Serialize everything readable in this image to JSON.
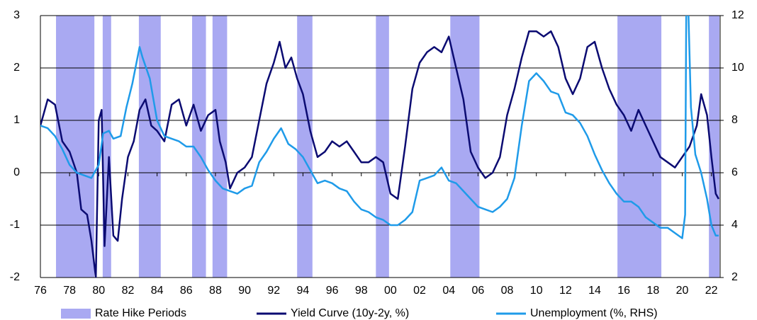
{
  "chart_data": {
    "type": "line",
    "xlim": [
      1976,
      2022.6
    ],
    "xticks": [
      {
        "value": 1976,
        "label": "76"
      },
      {
        "value": 1978,
        "label": "78"
      },
      {
        "value": 1980,
        "label": "80"
      },
      {
        "value": 1982,
        "label": "82"
      },
      {
        "value": 1984,
        "label": "84"
      },
      {
        "value": 1986,
        "label": "86"
      },
      {
        "value": 1988,
        "label": "88"
      },
      {
        "value": 1990,
        "label": "90"
      },
      {
        "value": 1992,
        "label": "92"
      },
      {
        "value": 1994,
        "label": "94"
      },
      {
        "value": 1996,
        "label": "96"
      },
      {
        "value": 1998,
        "label": "98"
      },
      {
        "value": 2000,
        "label": "00"
      },
      {
        "value": 2002,
        "label": "02"
      },
      {
        "value": 2004,
        "label": "04"
      },
      {
        "value": 2006,
        "label": "06"
      },
      {
        "value": 2008,
        "label": "08"
      },
      {
        "value": 2010,
        "label": "10"
      },
      {
        "value": 2012,
        "label": "12"
      },
      {
        "value": 2014,
        "label": "14"
      },
      {
        "value": 2016,
        "label": "16"
      },
      {
        "value": 2018,
        "label": "18"
      },
      {
        "value": 2020,
        "label": "20"
      },
      {
        "value": 2022,
        "label": "22"
      }
    ],
    "ylim": [
      -2,
      3
    ],
    "yticks": [
      -2,
      -1,
      0,
      1,
      2,
      3
    ],
    "y2lim": [
      2,
      12
    ],
    "y2ticks": [
      2,
      4,
      6,
      8,
      10,
      12
    ],
    "grid": true,
    "series": [
      {
        "name": "Rate Hike Periods",
        "color": "#a9a9f2",
        "periods": [
          [
            1977.07,
            1979.7
          ],
          [
            1980.27,
            1980.85
          ],
          [
            1982.75,
            1984.25
          ],
          [
            1986.4,
            1987.35
          ],
          [
            1987.8,
            1988.8
          ],
          [
            1993.6,
            1994.65
          ],
          [
            1999.0,
            1999.9
          ],
          [
            2004.1,
            2006.1
          ],
          [
            2015.56,
            2018.57
          ],
          [
            2021.83,
            2022.55
          ]
        ]
      },
      {
        "name": "Yield Curve (10y-2y, %)",
        "color": "#0b0b72",
        "x": [
          1976.0,
          1976.5,
          1977.0,
          1977.5,
          1978.0,
          1978.5,
          1978.8,
          1979.2,
          1979.5,
          1979.8,
          1980.0,
          1980.2,
          1980.4,
          1980.7,
          1981.0,
          1981.3,
          1981.6,
          1982.0,
          1982.4,
          1982.8,
          1983.2,
          1983.6,
          1984.0,
          1984.5,
          1985.0,
          1985.5,
          1986.0,
          1986.5,
          1987.0,
          1987.5,
          1988.0,
          1988.3,
          1988.7,
          1989.0,
          1989.5,
          1990.0,
          1990.5,
          1991.0,
          1991.5,
          1992.0,
          1992.4,
          1992.8,
          1993.2,
          1993.6,
          1994.0,
          1994.5,
          1995.0,
          1995.5,
          1996.0,
          1996.5,
          1997.0,
          1997.5,
          1998.0,
          1998.5,
          1999.0,
          1999.5,
          2000.0,
          2000.5,
          2001.0,
          2001.5,
          2002.0,
          2002.5,
          2003.0,
          2003.5,
          2004.0,
          2004.5,
          2005.0,
          2005.5,
          2006.0,
          2006.5,
          2007.0,
          2007.5,
          2008.0,
          2008.5,
          2009.0,
          2009.5,
          2010.0,
          2010.5,
          2011.0,
          2011.5,
          2012.0,
          2012.5,
          2013.0,
          2013.5,
          2014.0,
          2014.5,
          2015.0,
          2015.5,
          2016.0,
          2016.5,
          2017.0,
          2017.5,
          2018.0,
          2018.5,
          2019.0,
          2019.5,
          2020.0,
          2020.5,
          2021.0,
          2021.3,
          2021.7,
          2022.0,
          2022.3,
          2022.5
        ],
        "values": [
          0.9,
          1.4,
          1.3,
          0.6,
          0.4,
          0.0,
          -0.7,
          -0.8,
          -1.3,
          -2.0,
          1.0,
          1.2,
          -1.4,
          0.3,
          -1.2,
          -1.3,
          -0.5,
          0.3,
          0.6,
          1.2,
          1.4,
          0.9,
          0.8,
          0.6,
          1.3,
          1.4,
          0.9,
          1.3,
          0.8,
          1.1,
          1.2,
          0.6,
          0.2,
          -0.3,
          0.0,
          0.1,
          0.3,
          1.0,
          1.7,
          2.1,
          2.5,
          2.0,
          2.2,
          1.8,
          1.5,
          0.8,
          0.3,
          0.4,
          0.6,
          0.5,
          0.6,
          0.4,
          0.2,
          0.2,
          0.3,
          0.2,
          -0.4,
          -0.5,
          0.5,
          1.6,
          2.1,
          2.3,
          2.4,
          2.3,
          2.6,
          2.0,
          1.4,
          0.4,
          0.1,
          -0.1,
          0.0,
          0.3,
          1.1,
          1.6,
          2.2,
          2.7,
          2.7,
          2.6,
          2.7,
          2.4,
          1.8,
          1.5,
          1.8,
          2.4,
          2.5,
          2.0,
          1.6,
          1.3,
          1.1,
          0.8,
          1.2,
          0.9,
          0.6,
          0.3,
          0.2,
          0.1,
          0.3,
          0.5,
          0.9,
          1.5,
          1.1,
          0.3,
          -0.4,
          -0.5
        ]
      },
      {
        "name": "Unemployment (%, RHS)",
        "color": "#1f9be9",
        "axis": "y2",
        "x": [
          1976.0,
          1976.5,
          1977.0,
          1977.5,
          1978.0,
          1978.5,
          1979.0,
          1979.5,
          1980.0,
          1980.3,
          1980.7,
          1981.0,
          1981.5,
          1981.9,
          1982.3,
          1982.8,
          1983.0,
          1983.5,
          1984.0,
          1984.5,
          1985.0,
          1985.5,
          1986.0,
          1986.5,
          1987.0,
          1987.5,
          1988.0,
          1988.5,
          1989.0,
          1989.5,
          1990.0,
          1990.5,
          1991.0,
          1991.5,
          1992.0,
          1992.5,
          1993.0,
          1993.5,
          1994.0,
          1994.5,
          1995.0,
          1995.5,
          1996.0,
          1996.5,
          1997.0,
          1997.5,
          1998.0,
          1998.5,
          1999.0,
          1999.5,
          2000.0,
          2000.5,
          2001.0,
          2001.5,
          2002.0,
          2002.5,
          2003.0,
          2003.5,
          2004.0,
          2004.5,
          2005.0,
          2005.5,
          2006.0,
          2006.5,
          2007.0,
          2007.5,
          2008.0,
          2008.5,
          2009.0,
          2009.5,
          2010.0,
          2010.5,
          2011.0,
          2011.5,
          2012.0,
          2012.5,
          2013.0,
          2013.5,
          2014.0,
          2014.5,
          2015.0,
          2015.5,
          2016.0,
          2016.5,
          2017.0,
          2017.5,
          2018.0,
          2018.5,
          2019.0,
          2019.5,
          2020.0,
          2020.2,
          2020.3,
          2020.6,
          2020.9,
          2021.3,
          2021.7,
          2022.0,
          2022.3,
          2022.5
        ],
        "values": [
          7.8,
          7.7,
          7.4,
          6.9,
          6.3,
          6.0,
          5.9,
          5.8,
          6.3,
          7.5,
          7.6,
          7.3,
          7.4,
          8.5,
          9.4,
          10.8,
          10.4,
          9.6,
          8.0,
          7.4,
          7.3,
          7.2,
          7.0,
          7.0,
          6.6,
          6.1,
          5.7,
          5.4,
          5.3,
          5.2,
          5.4,
          5.5,
          6.4,
          6.8,
          7.3,
          7.7,
          7.1,
          6.9,
          6.6,
          6.1,
          5.6,
          5.7,
          5.6,
          5.4,
          5.3,
          4.9,
          4.6,
          4.5,
          4.3,
          4.2,
          4.0,
          4.0,
          4.2,
          4.5,
          5.7,
          5.8,
          5.9,
          6.2,
          5.7,
          5.6,
          5.3,
          5.0,
          4.7,
          4.6,
          4.5,
          4.7,
          5.0,
          5.8,
          7.8,
          9.5,
          9.8,
          9.5,
          9.1,
          9.0,
          8.3,
          8.2,
          7.9,
          7.4,
          6.7,
          6.1,
          5.6,
          5.2,
          4.9,
          4.9,
          4.7,
          4.3,
          4.1,
          3.9,
          3.9,
          3.7,
          3.5,
          4.4,
          14.7,
          8.5,
          6.7,
          6.0,
          5.0,
          4.0,
          3.6,
          3.6
        ]
      }
    ]
  }
}
